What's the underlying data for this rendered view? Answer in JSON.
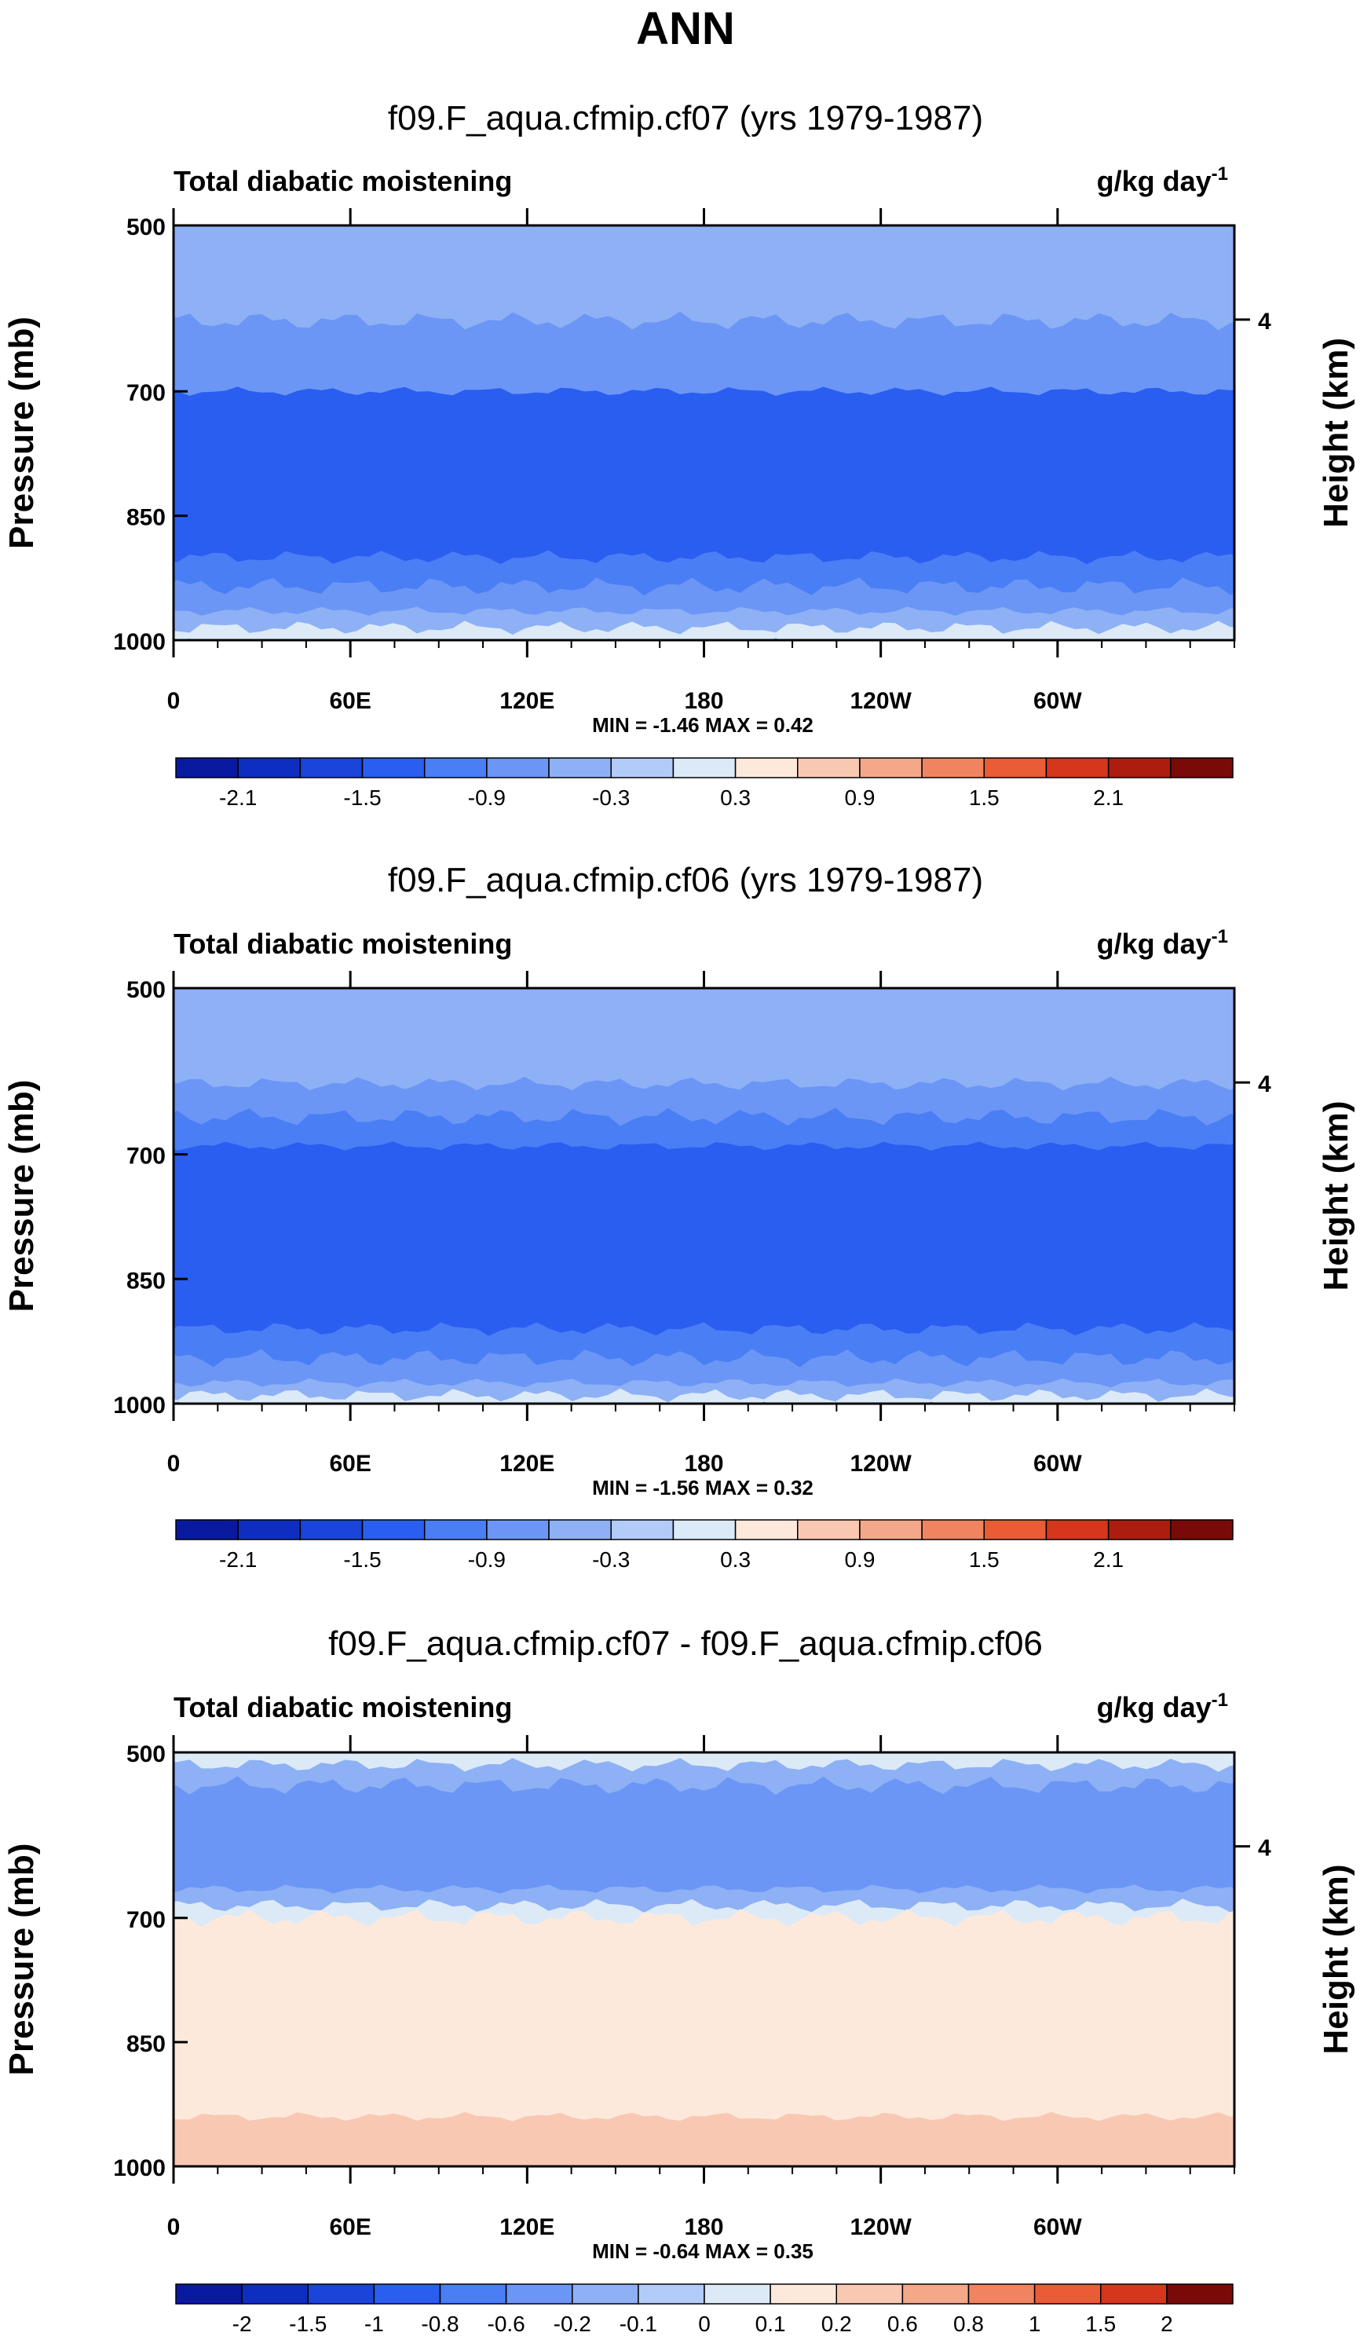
{
  "figure_title": "ANN",
  "colors": {
    "deep_blue": "#0000a8",
    "mid_blue": "#1f58e8",
    "light_blue": "#a8c4f4",
    "pale_blue": "#d8eafc",
    "cream": "#fce8d8",
    "salmon": "#f4a888",
    "dark_red": "#8a0000"
  },
  "chart_data": [
    {
      "type": "contour",
      "title": "f09.F_aqua.cfmip.cf07 (yrs 1979-1987)",
      "left_label": "Total diabatic moistening",
      "units_base": "g/kg day",
      "units_sup": "-1",
      "ylabel": "Pressure (mb)",
      "y2label": "Height (km)",
      "y_ticks": [
        "500",
        "700",
        "850",
        "1000"
      ],
      "y2_ticks": [
        "4"
      ],
      "x_ticks": [
        "0",
        "60E",
        "120E",
        "180",
        "120W",
        "60W"
      ],
      "stats": "MIN =  -1.46   MAX =   0.42",
      "colorbar_labels": [
        "-2.1",
        "-1.5",
        "-0.9",
        "-0.3",
        "0.3",
        "0.9",
        "1.5",
        "2.1"
      ],
      "colorbar_levels": [
        -2.4,
        -2.1,
        -1.8,
        -1.5,
        -1.2,
        -0.9,
        -0.6,
        -0.3,
        0,
        0.3,
        0.6,
        0.9,
        1.2,
        1.5,
        1.8,
        2.1,
        2.4
      ],
      "colorbar_colors": [
        "#0a1aa0",
        "#0d2ec0",
        "#1a44da",
        "#2a5ef0",
        "#4a7ef5",
        "#6b96f5",
        "#8eb0f5",
        "#b3cbf8",
        "#dceaf8",
        "#fde9dc",
        "#f9c8b3",
        "#f4a88a",
        "#f08460",
        "#ea5c36",
        "#d5361c",
        "#ad1d0f",
        "#7a0a07"
      ],
      "layers_description": "zonal-height field of negative moistening, strongest near 700-900 mb",
      "field_bands": [
        {
          "p_top": 500,
          "p_bot": 540,
          "value": -0.3
        },
        {
          "p_top": 540,
          "p_bot": 615,
          "value": -0.5
        },
        {
          "p_top": 615,
          "p_bot": 700,
          "value": -0.8
        },
        {
          "p_top": 700,
          "p_bot": 900,
          "value": -1.3
        },
        {
          "p_top": 900,
          "p_bot": 935,
          "value": -0.9
        },
        {
          "p_top": 935,
          "p_bot": 965,
          "value": -0.6
        },
        {
          "p_top": 965,
          "p_bot": 985,
          "value": -0.3
        },
        {
          "p_top": 985,
          "p_bot": 1000,
          "value": 0.2
        }
      ]
    },
    {
      "type": "contour",
      "title": "f09.F_aqua.cfmip.cf06 (yrs 1979-1987)",
      "left_label": "Total diabatic moistening",
      "units_base": "g/kg day",
      "units_sup": "-1",
      "ylabel": "Pressure (mb)",
      "y2label": "Height (km)",
      "y_ticks": [
        "500",
        "700",
        "850",
        "1000"
      ],
      "y2_ticks": [
        "4"
      ],
      "x_ticks": [
        "0",
        "60E",
        "120E",
        "180",
        "120W",
        "60W"
      ],
      "stats": "MIN =  -1.56   MAX =   0.32",
      "colorbar_labels": [
        "-2.1",
        "-1.5",
        "-0.9",
        "-0.3",
        "0.3",
        "0.9",
        "1.5",
        "2.1"
      ],
      "colorbar_levels": [
        -2.4,
        -2.1,
        -1.8,
        -1.5,
        -1.2,
        -0.9,
        -0.6,
        -0.3,
        0,
        0.3,
        0.6,
        0.9,
        1.2,
        1.5,
        1.8,
        2.1,
        2.4
      ],
      "colorbar_colors": [
        "#0a1aa0",
        "#0d2ec0",
        "#1a44da",
        "#2a5ef0",
        "#4a7ef5",
        "#6b96f5",
        "#8eb0f5",
        "#b3cbf8",
        "#dceaf8",
        "#fde9dc",
        "#f9c8b3",
        "#f4a88a",
        "#f08460",
        "#ea5c36",
        "#d5361c",
        "#ad1d0f",
        "#7a0a07"
      ],
      "field_bands": [
        {
          "p_top": 500,
          "p_bot": 615,
          "value": -0.4
        },
        {
          "p_top": 615,
          "p_bot": 655,
          "value": -0.6
        },
        {
          "p_top": 655,
          "p_bot": 690,
          "value": -0.9
        },
        {
          "p_top": 690,
          "p_bot": 910,
          "value": -1.35
        },
        {
          "p_top": 910,
          "p_bot": 945,
          "value": -0.9
        },
        {
          "p_top": 945,
          "p_bot": 975,
          "value": -0.6
        },
        {
          "p_top": 975,
          "p_bot": 990,
          "value": -0.3
        },
        {
          "p_top": 990,
          "p_bot": 1000,
          "value": 0.2
        }
      ]
    },
    {
      "type": "contour",
      "title": "f09.F_aqua.cfmip.cf07 - f09.F_aqua.cfmip.cf06",
      "left_label": "Total diabatic moistening",
      "units_base": "g/kg day",
      "units_sup": "-1",
      "ylabel": "Pressure (mb)",
      "y2label": "Height (km)",
      "y_ticks": [
        "500",
        "700",
        "850",
        "1000"
      ],
      "y2_ticks": [
        "4"
      ],
      "x_ticks": [
        "0",
        "60E",
        "120E",
        "180",
        "120W",
        "60W"
      ],
      "stats": "MIN =  -0.64   MAX =   0.35",
      "colorbar_labels": [
        "-2",
        "-1.5",
        "-1",
        "-0.8",
        "-0.6",
        "-0.2",
        "-0.1",
        "0",
        "0.1",
        "0.2",
        "0.6",
        "0.8",
        "1",
        "1.5",
        "2"
      ],
      "colorbar_levels": [
        -2,
        -1.5,
        -1,
        -0.8,
        -0.6,
        -0.2,
        -0.1,
        0,
        0.1,
        0.2,
        0.6,
        0.8,
        1,
        1.5,
        2
      ],
      "colorbar_colors": [
        "#0a1aa0",
        "#0d2ec0",
        "#1a44da",
        "#2a5ef0",
        "#4a7ef5",
        "#6b96f5",
        "#8eb0f5",
        "#b3cbf8",
        "#dceaf8",
        "#fde9dc",
        "#f9c8b3",
        "#f4a88a",
        "#f08460",
        "#ea5c36",
        "#d5361c",
        "#7a0a07"
      ],
      "field_bands": [
        {
          "p_top": 500,
          "p_bot": 515,
          "value": 0.05
        },
        {
          "p_top": 515,
          "p_bot": 540,
          "value": -0.15
        },
        {
          "p_top": 540,
          "p_bot": 665,
          "value": -0.4
        },
        {
          "p_top": 665,
          "p_bot": 685,
          "value": -0.15
        },
        {
          "p_top": 685,
          "p_bot": 700,
          "value": 0.05
        },
        {
          "p_top": 700,
          "p_bot": 940,
          "value": 0.15
        },
        {
          "p_top": 940,
          "p_bot": 1000,
          "value": 0.25
        }
      ]
    }
  ]
}
